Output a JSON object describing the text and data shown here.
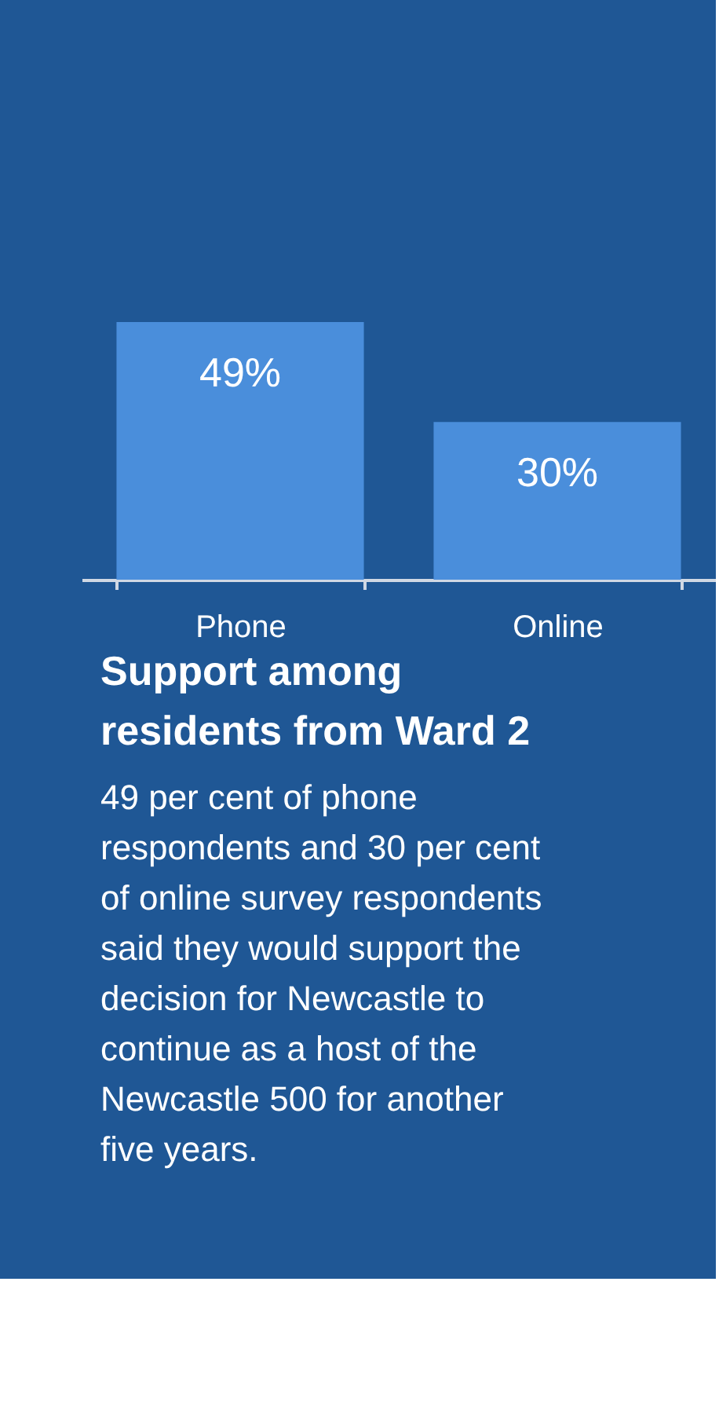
{
  "chart_data": {
    "type": "bar",
    "categories": [
      "Phone",
      "Online"
    ],
    "values": [
      49,
      30
    ],
    "value_labels": [
      "49%",
      "30%"
    ],
    "color": "#4a8edb",
    "tick_labels": "x",
    "title": "Support among residents from Ward 2",
    "annotations": [
      "49 per cent of phone respondents and 30 per cent of online survey respondents said they would support the decision for Newcastle to continue as a host of the Newcastle 500 for another five years."
    ]
  }
}
